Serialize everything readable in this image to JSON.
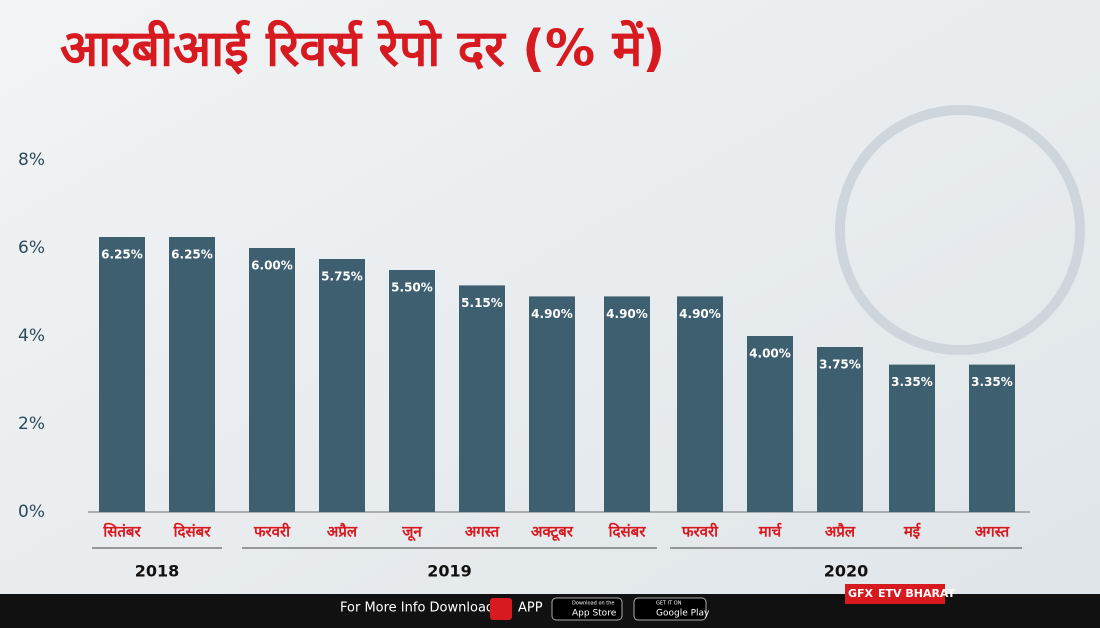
{
  "chart_data": {
    "type": "bar",
    "title": "आरबीआई रिवर्स रेपो दर (% में)",
    "categories": [
      "सितंबर",
      "दिसंबर",
      "फरवरी",
      "अप्रैल",
      "जून",
      "अगस्त",
      "अक्टूबर",
      "दिसंबर",
      "फरवरी",
      "मार्च",
      "अप्रैल",
      "मई",
      "अगस्त"
    ],
    "values": [
      6.25,
      6.25,
      6.0,
      5.75,
      5.5,
      5.15,
      4.9,
      4.9,
      4.9,
      4.0,
      3.75,
      3.35,
      3.35
    ],
    "value_labels": [
      "6.25%",
      "6.25%",
      "6.00%",
      "5.75%",
      "5.50%",
      "5.15%",
      "4.90%",
      "4.90%",
      "4.90%",
      "4.00%",
      "3.75%",
      "3.35%",
      "3.35%"
    ],
    "color": "#3e5f70",
    "ylim": [
      0,
      8
    ],
    "yticks": [
      {
        "value": 0,
        "label": "0%"
      },
      {
        "value": 2,
        "label": "2%"
      },
      {
        "value": 4,
        "label": "4%"
      },
      {
        "value": 6,
        "label": "6%"
      },
      {
        "value": 8,
        "label": "8%"
      }
    ],
    "groups": [
      {
        "label": "2018",
        "start": 0,
        "end": 1
      },
      {
        "label": "2019",
        "start": 2,
        "end": 7
      },
      {
        "label": "2020",
        "start": 8,
        "end": 12
      }
    ]
  },
  "footer": {
    "text": "For More Info Download",
    "app": "APP",
    "app_store_top": "Download on the",
    "app_store": "App Store",
    "play_top": "GET IT ON",
    "play": "Google Play",
    "gfx": "GFX",
    "brand": "ETV BHARAT"
  }
}
